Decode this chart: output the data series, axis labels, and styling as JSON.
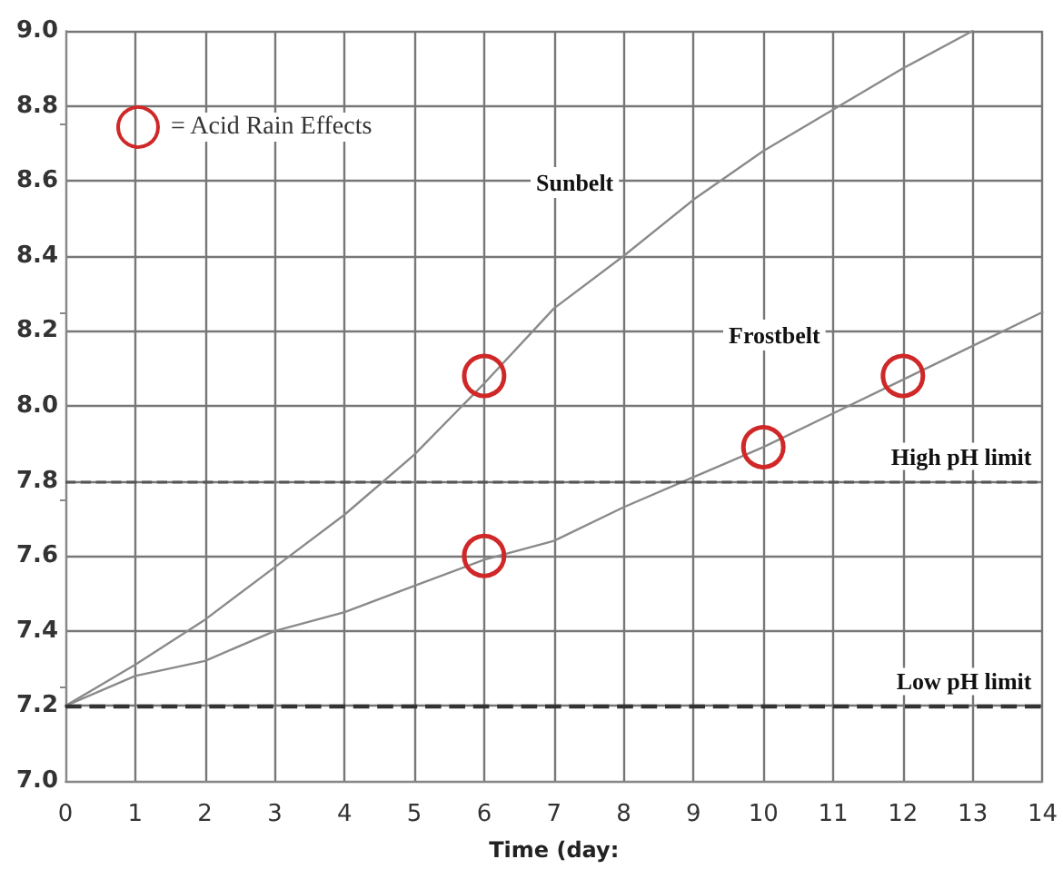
{
  "chart_data": {
    "type": "line",
    "xlabel": "Time (day:",
    "x": [
      0,
      1,
      2,
      3,
      4,
      5,
      6,
      7,
      8,
      9,
      10,
      11,
      12,
      13,
      14
    ],
    "series": [
      {
        "color": "#8a8a8a",
        "values": [
          7.2,
          7.31,
          7.43,
          7.57,
          7.71,
          7.87,
          8.06,
          8.26,
          8.4,
          8.55,
          8.68,
          8.79,
          8.9,
          9.0,
          null
        ]
      },
      {
        "color": "#8a8a8a",
        "values": [
          7.2,
          7.28,
          7.32,
          7.4,
          7.45,
          7.52,
          7.59,
          7.64,
          7.73,
          7.81,
          7.89,
          7.98,
          8.07,
          8.16,
          8.25
        ]
      },
      {
        "name": "= Acid Rain Effects",
        "type": "scatter",
        "marker": "circle",
        "color": "#d02828",
        "x": [
          6,
          6,
          10,
          12
        ],
        "values": [
          8.08,
          7.6,
          7.89,
          8.08
        ]
      }
    ],
    "marker": "none",
    "line_style": "solid",
    "xlim": [
      0,
      14
    ],
    "xticks": [
      0,
      1,
      2,
      3,
      4,
      5,
      6,
      7,
      8,
      9,
      10,
      11,
      12,
      13,
      14
    ],
    "ylim": [
      7.0,
      9.0
    ],
    "yticks": [
      {
        "value": 7,
        "label": "7.0"
      },
      7.2,
      7.4,
      7.6,
      7.8,
      {
        "value": 8,
        "label": "8.0"
      },
      8.2,
      8.4,
      8.6,
      8.8,
      {
        "value": 9,
        "label": "9.0"
      }
    ],
    "ref_lines": [
      {
        "axis": "y",
        "value": 7.8,
        "label": "High pH limit",
        "line_style": "dashed",
        "color": "#555555"
      },
      {
        "axis": "y",
        "value": 7.2,
        "label": "Low pH limit",
        "line_style": "dashed",
        "color": "#333333"
      }
    ],
    "annotations": [
      "Sunbelt",
      "Frostbelt"
    ],
    "grid": true,
    "legend": "top left"
  }
}
